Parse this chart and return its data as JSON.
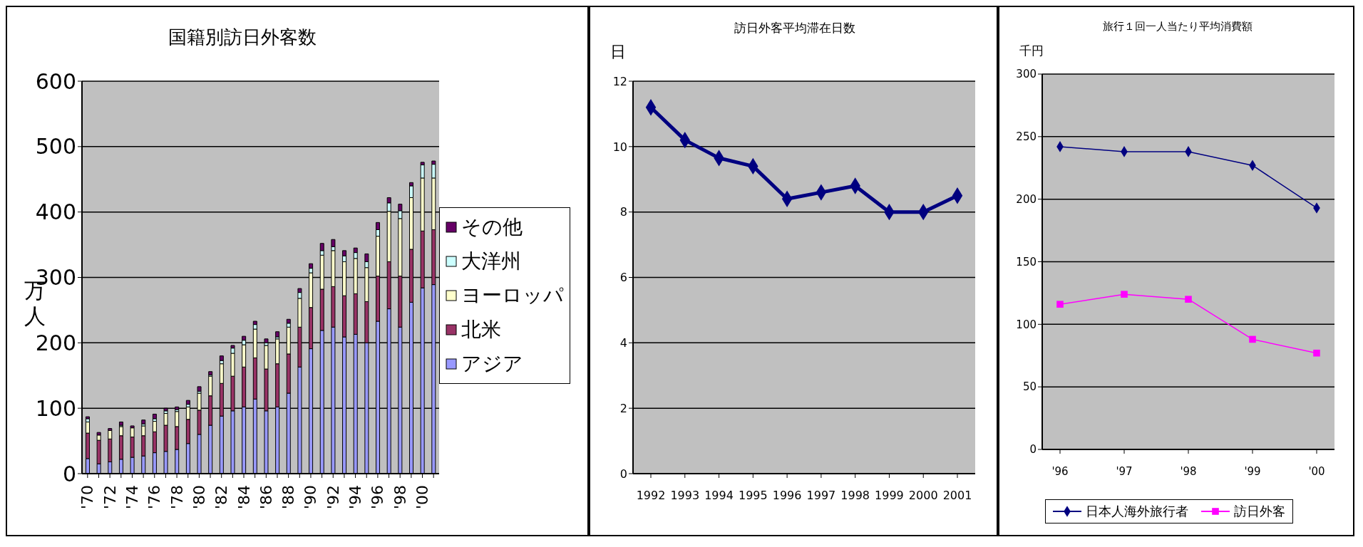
{
  "chart_data": [
    {
      "type": "bar",
      "title": "国籍別訪日外客数",
      "ylabel": "万人",
      "stacked": true,
      "grid": "y",
      "legend": "right",
      "ylim": [
        0,
        600
      ],
      "yticks": [
        0,
        100,
        200,
        300,
        400,
        500,
        600
      ],
      "categories": [
        "'70",
        null,
        "'72",
        null,
        "'74",
        null,
        "'76",
        null,
        "'78",
        null,
        "'80",
        null,
        "'82",
        null,
        "'84",
        null,
        "'86",
        null,
        "'88",
        null,
        "'90",
        null,
        "'92",
        null,
        "'94",
        null,
        "'96",
        null,
        "'98",
        null,
        "'00",
        null
      ],
      "series": [
        {
          "name": "アジア",
          "color": "#9999ff",
          "values": [
            23,
            15,
            18,
            22,
            25,
            27,
            32,
            34,
            37,
            46,
            60,
            74,
            88,
            96,
            102,
            114,
            96,
            102,
            123,
            163,
            191,
            219,
            224,
            209,
            213,
            200,
            233,
            252,
            224,
            262,
            284,
            289
          ]
        },
        {
          "name": "北米",
          "color": "#993366",
          "values": [
            39,
            36,
            35,
            36,
            31,
            31,
            32,
            40,
            35,
            37,
            37,
            45,
            50,
            53,
            61,
            63,
            64,
            66,
            60,
            61,
            63,
            63,
            62,
            63,
            62,
            63,
            69,
            72,
            78,
            81,
            87,
            84
          ]
        },
        {
          "name": "ヨーロッパ",
          "color": "#ffffcc",
          "values": [
            17,
            8,
            13,
            14,
            14,
            15,
            16,
            18,
            23,
            19,
            26,
            30,
            30,
            35,
            34,
            44,
            36,
            38,
            41,
            44,
            53,
            52,
            55,
            52,
            54,
            52,
            61,
            77,
            88,
            79,
            81,
            79
          ]
        },
        {
          "name": "大洋州",
          "color": "#ccffff",
          "values": [
            5,
            null,
            null,
            2,
            null,
            3,
            4,
            4,
            3,
            4,
            3,
            2,
            5,
            8,
            7,
            7,
            4,
            3,
            6,
            9,
            7,
            7,
            6,
            9,
            9,
            9,
            10,
            13,
            12,
            18,
            20,
            21
          ]
        },
        {
          "name": "その他",
          "color": "#660066",
          "values": [
            3,
            4,
            3,
            5,
            3,
            6,
            7,
            4,
            4,
            6,
            7,
            5,
            7,
            4,
            6,
            5,
            6,
            8,
            6,
            6,
            7,
            11,
            11,
            8,
            7,
            12,
            11,
            8,
            10,
            5,
            4,
            5
          ]
        }
      ]
    },
    {
      "type": "line",
      "title": "訪日外客平均滞在日数",
      "ylabel": "日",
      "grid": "y",
      "marker": "diamond",
      "ylim": [
        0,
        12
      ],
      "yticks": [
        0,
        2,
        4,
        6,
        8,
        10,
        12
      ],
      "categories": [
        "1992",
        "1993",
        "1994",
        "1995",
        "1996",
        "1997",
        "1998",
        "1999",
        "2000",
        "2001"
      ],
      "series": [
        {
          "color": "#000080",
          "values": [
            11.2,
            10.2,
            9.65,
            9.4,
            8.4,
            8.6,
            8.8,
            8.0,
            8.0,
            8.5
          ]
        }
      ]
    },
    {
      "type": "line",
      "title": "旅行１回一人当たり平均消費額",
      "ylabel": "千円",
      "grid": "y",
      "legend": "bottom",
      "ylim": [
        0,
        300
      ],
      "yticks": [
        0,
        50,
        100,
        150,
        200,
        250,
        300
      ],
      "categories": [
        "'96",
        "'97",
        "'98",
        "'99",
        "'00"
      ],
      "series": [
        {
          "name": "日本人海外旅行者",
          "color": "#000080",
          "marker": "diamond",
          "values": [
            242,
            238,
            238,
            227,
            193
          ]
        },
        {
          "name": "訪日外客",
          "color": "#ff00ff",
          "marker": "square",
          "values": [
            116,
            124,
            120,
            88,
            77
          ]
        }
      ]
    }
  ]
}
